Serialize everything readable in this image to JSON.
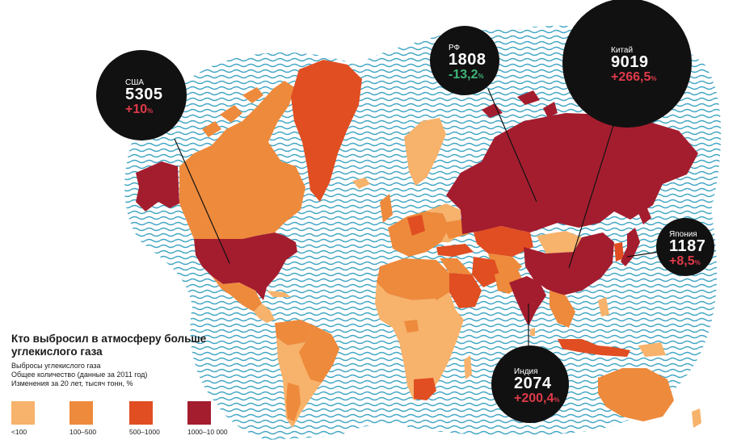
{
  "title": "Кто выбросил в атмосферу больше углекислого газа",
  "subtitle_lines": [
    "Выбросы углекислого газа",
    "Общее количество (данные за 2011 год)",
    "Изменения за 20 лет, тысяч тонн, %"
  ],
  "legend": [
    {
      "label": "<100",
      "color": "#f7b26b"
    },
    {
      "label": "100–500",
      "color": "#ee8a3c"
    },
    {
      "label": "500–1000",
      "color": "#e04e22"
    },
    {
      "label": "1000–10 000",
      "color": "#a41d2e"
    }
  ],
  "colors": {
    "ocean_wave": "#43a6c4",
    "callout_bg": "#111111",
    "increase": "#e03a4a",
    "decrease": "#3fb67a",
    "label_white": "#ffffff"
  },
  "callouts": [
    {
      "country": "США",
      "value": "5305",
      "change": "+10",
      "unit": "%",
      "direction": "up"
    },
    {
      "country": "РФ",
      "value": "1808",
      "change": "-13,2",
      "unit": "%",
      "direction": "down"
    },
    {
      "country": "Китай",
      "value": "9019",
      "change": "+266,5",
      "unit": "%",
      "direction": "up"
    },
    {
      "country": "Япония",
      "value": "1187",
      "change": "+8,5",
      "unit": "%",
      "direction": "up"
    },
    {
      "country": "Индия",
      "value": "2074",
      "change": "+200,4",
      "unit": "%",
      "direction": "up"
    }
  ]
}
